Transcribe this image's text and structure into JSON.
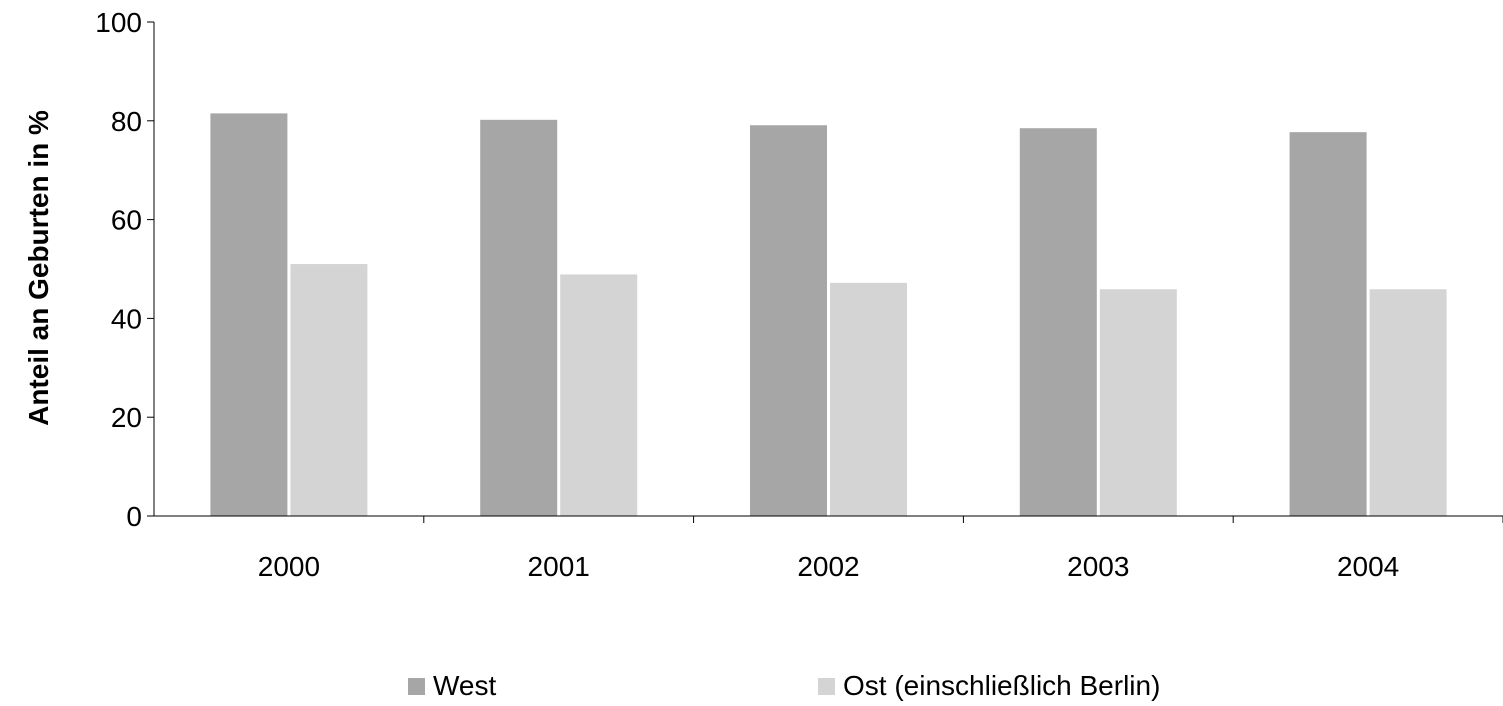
{
  "chart_data": {
    "type": "bar",
    "title": "",
    "xlabel": "",
    "ylabel": "Anteil an Geburten in %",
    "categories": [
      "2000",
      "2001",
      "2002",
      "2003",
      "2004"
    ],
    "series": [
      {
        "name": "West",
        "values": [
          81.5,
          80.2,
          79.1,
          78.5,
          77.7
        ],
        "color": "#a6a6a6"
      },
      {
        "name": "Ost (einschließlich Berlin)",
        "values": [
          51.0,
          48.9,
          47.2,
          45.9,
          45.9
        ],
        "color": "#d4d4d4"
      }
    ],
    "ylim": [
      0,
      100
    ],
    "yticks": [
      "0",
      "20",
      "40",
      "60",
      "80",
      "100"
    ],
    "grid": false,
    "legend_position": "bottom"
  }
}
